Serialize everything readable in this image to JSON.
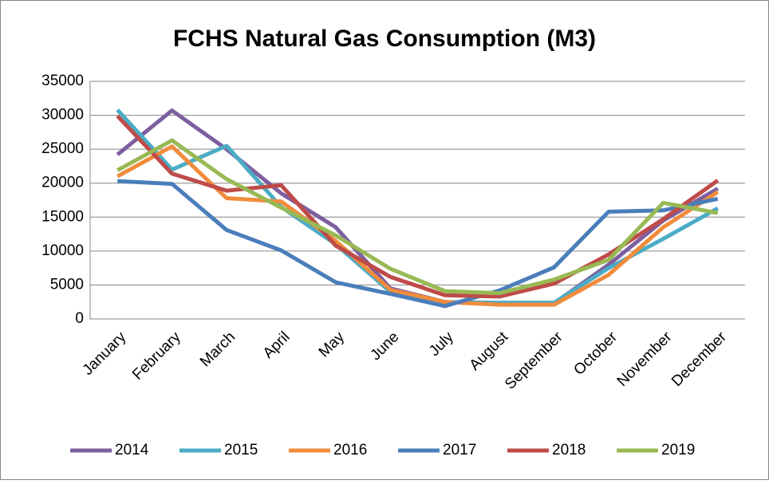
{
  "chart_data": {
    "type": "line",
    "title": "FCHS Natural Gas Consumption (M3)",
    "categories": [
      "January",
      "February",
      "March",
      "April",
      "May",
      "June",
      "July",
      "August",
      "September",
      "October",
      "November",
      "December"
    ],
    "series": [
      {
        "name": "2014",
        "color": "#7d5fa0",
        "values": [
          24200,
          30700,
          25000,
          18500,
          13500,
          4500,
          2500,
          2200,
          2300,
          8000,
          14500,
          19200
        ]
      },
      {
        "name": "2015",
        "color": "#4bacc6",
        "values": [
          30800,
          22000,
          25500,
          16500,
          11000,
          4000,
          2500,
          2400,
          2400,
          7500,
          11800,
          16300
        ]
      },
      {
        "name": "2016",
        "color": "#f08c3c",
        "values": [
          21000,
          25400,
          17800,
          17300,
          11500,
          4300,
          2500,
          2100,
          2100,
          6500,
          13500,
          18700
        ]
      },
      {
        "name": "2017",
        "color": "#4a7ebb",
        "values": [
          20300,
          19900,
          13100,
          10100,
          5400,
          3700,
          1900,
          4200,
          7600,
          15800,
          16000,
          17700
        ]
      },
      {
        "name": "2018",
        "color": "#be4b48",
        "values": [
          29900,
          21400,
          18900,
          19700,
          10800,
          6200,
          3500,
          3300,
          5200,
          9500,
          14700,
          20400
        ]
      },
      {
        "name": "2019",
        "color": "#98b954",
        "values": [
          21900,
          26300,
          20600,
          16400,
          12300,
          7400,
          4100,
          3800,
          5800,
          8700,
          17100,
          15600
        ]
      }
    ],
    "ylim": [
      0,
      35000
    ],
    "yticks": [
      0,
      5000,
      10000,
      15000,
      20000,
      25000,
      30000,
      35000
    ],
    "grid": true,
    "legend": "bottom"
  }
}
